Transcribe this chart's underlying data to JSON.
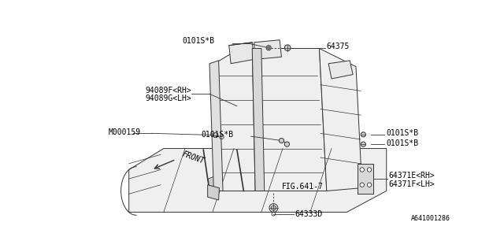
{
  "bg_color": "#ffffff",
  "line_color": "#333333",
  "text_color": "#000000",
  "diagram_id": "A641001286",
  "font_size": 7.0,
  "label_font": "monospace",
  "parts": {
    "64375": "64375",
    "0101SB": "0101S*B",
    "94089F": "94089F<RH>",
    "94089G": "94089G<LH>",
    "M000159": "M000159",
    "FIG641": "FIG.641-7",
    "64333D": "64333D",
    "64371E": "64371E<RH>",
    "64371F": "64371F<LH>",
    "FRONT": "FRONT"
  }
}
